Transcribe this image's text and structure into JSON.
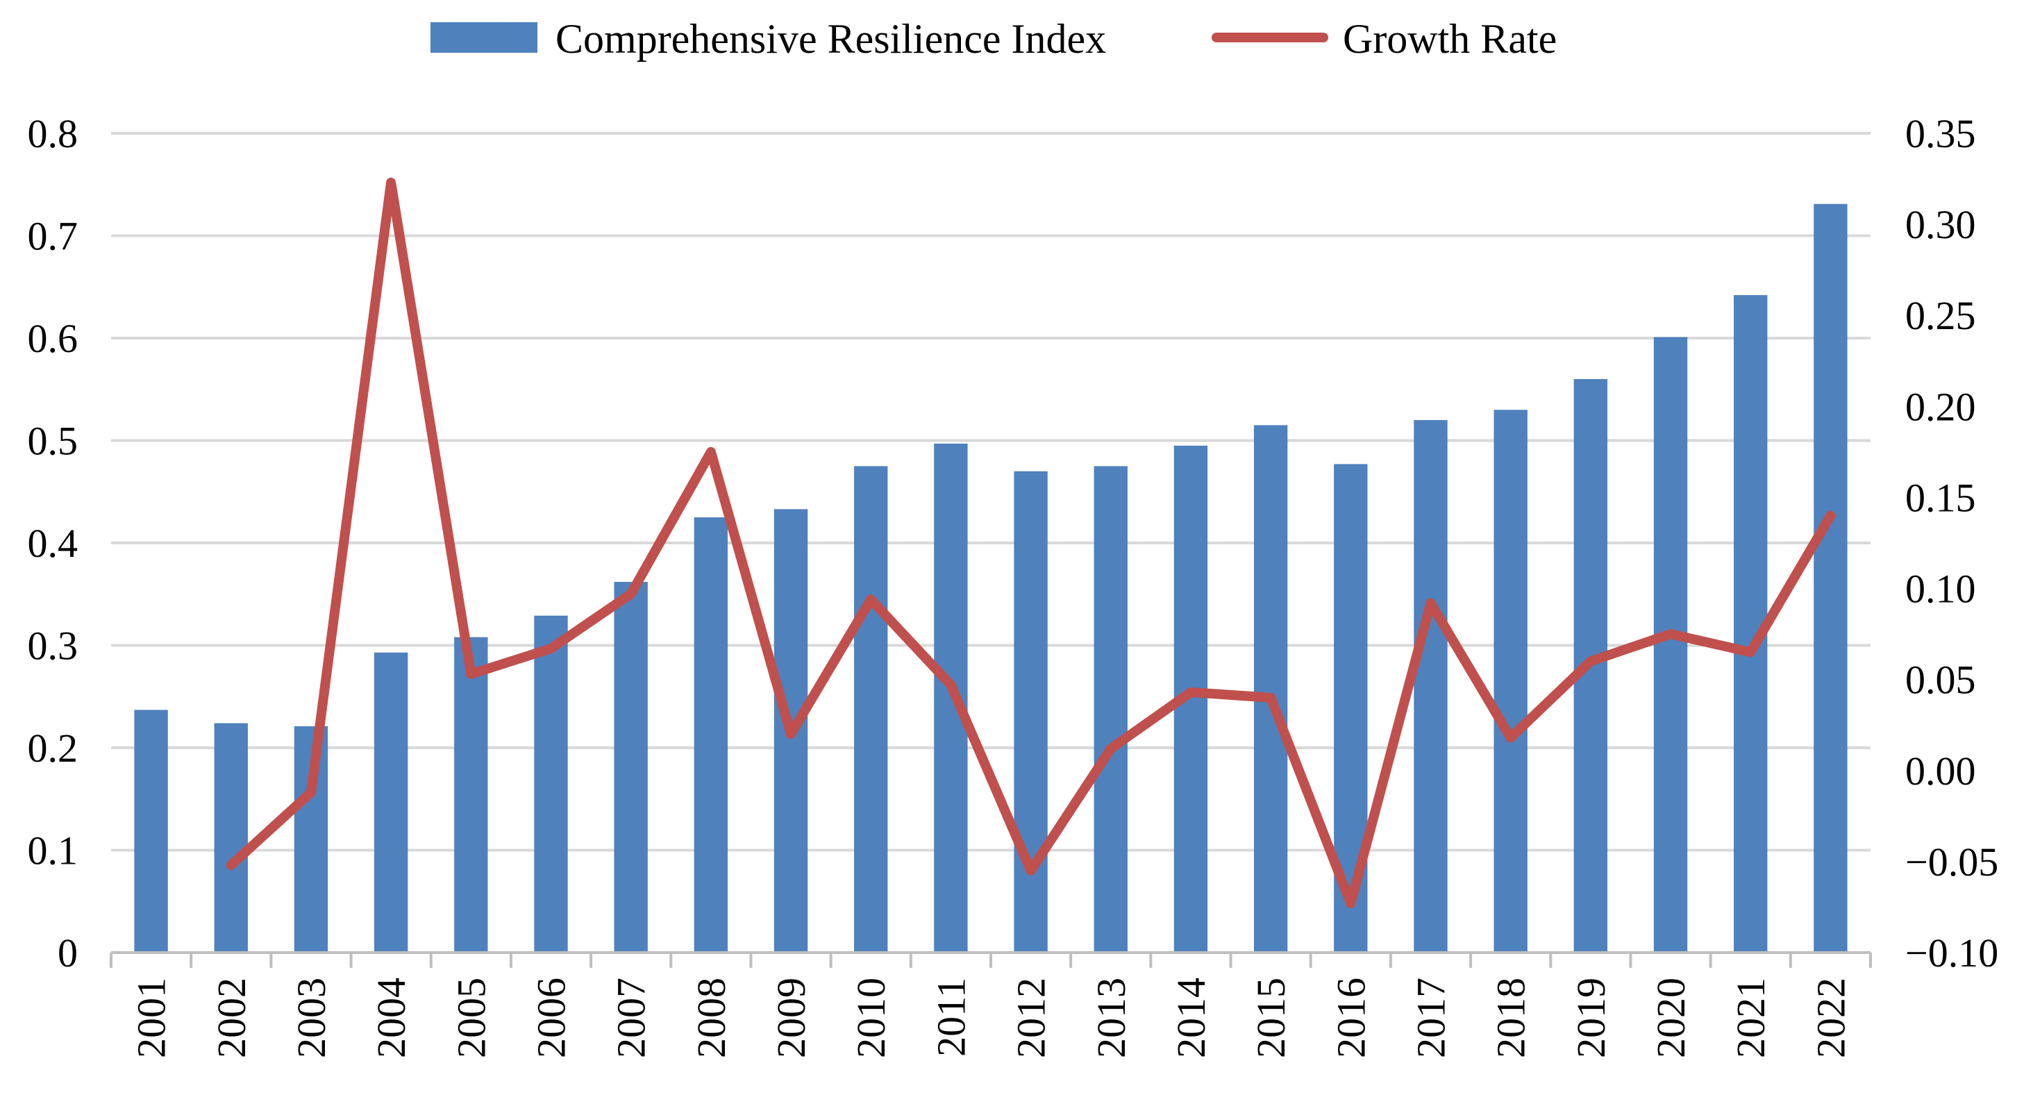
{
  "chart_data": {
    "type": "bar+line",
    "categories": [
      "2001",
      "2002",
      "2003",
      "2004",
      "2005",
      "2006",
      "2007",
      "2008",
      "2009",
      "2010",
      "2011",
      "2012",
      "2013",
      "2014",
      "2015",
      "2016",
      "2017",
      "2018",
      "2019",
      "2020",
      "2021",
      "2022"
    ],
    "series": [
      {
        "name": "Comprehensive Resilience Index",
        "type": "bar",
        "axis": "left",
        "color": "#4F81BD",
        "values": [
          0.237,
          0.224,
          0.221,
          0.293,
          0.308,
          0.329,
          0.362,
          0.425,
          0.433,
          0.475,
          0.497,
          0.47,
          0.475,
          0.495,
          0.515,
          0.477,
          0.52,
          0.53,
          0.56,
          0.601,
          0.642,
          0.731
        ]
      },
      {
        "name": "Growth Rate",
        "type": "line",
        "axis": "right",
        "color": "#C0504D",
        "values": [
          null,
          -0.052,
          -0.012,
          0.323,
          0.053,
          0.067,
          0.097,
          0.175,
          0.02,
          0.094,
          0.047,
          -0.055,
          0.012,
          0.043,
          0.04,
          -0.073,
          0.092,
          0.018,
          0.06,
          0.075,
          0.065,
          0.14
        ]
      }
    ],
    "left_axis": {
      "ylim": [
        0,
        0.8
      ],
      "ticks": [
        "0",
        "0.1",
        "0.2",
        "0.3",
        "0.4",
        "0.5",
        "0.6",
        "0.7",
        "0.8"
      ]
    },
    "right_axis": {
      "ylim": [
        -0.1,
        0.35
      ],
      "ticks": [
        "−0.10",
        "−0.05",
        "0.00",
        "0.05",
        "0.10",
        "0.15",
        "0.20",
        "0.25",
        "0.30",
        "0.35"
      ]
    },
    "legend": {
      "position": "top-center",
      "bar_label": "Comprehensive Resilience Index",
      "line_label": "Growth Rate"
    },
    "grid": true,
    "gridline_color": "#D9D9D9",
    "axis_color": "#BFBFBF"
  }
}
